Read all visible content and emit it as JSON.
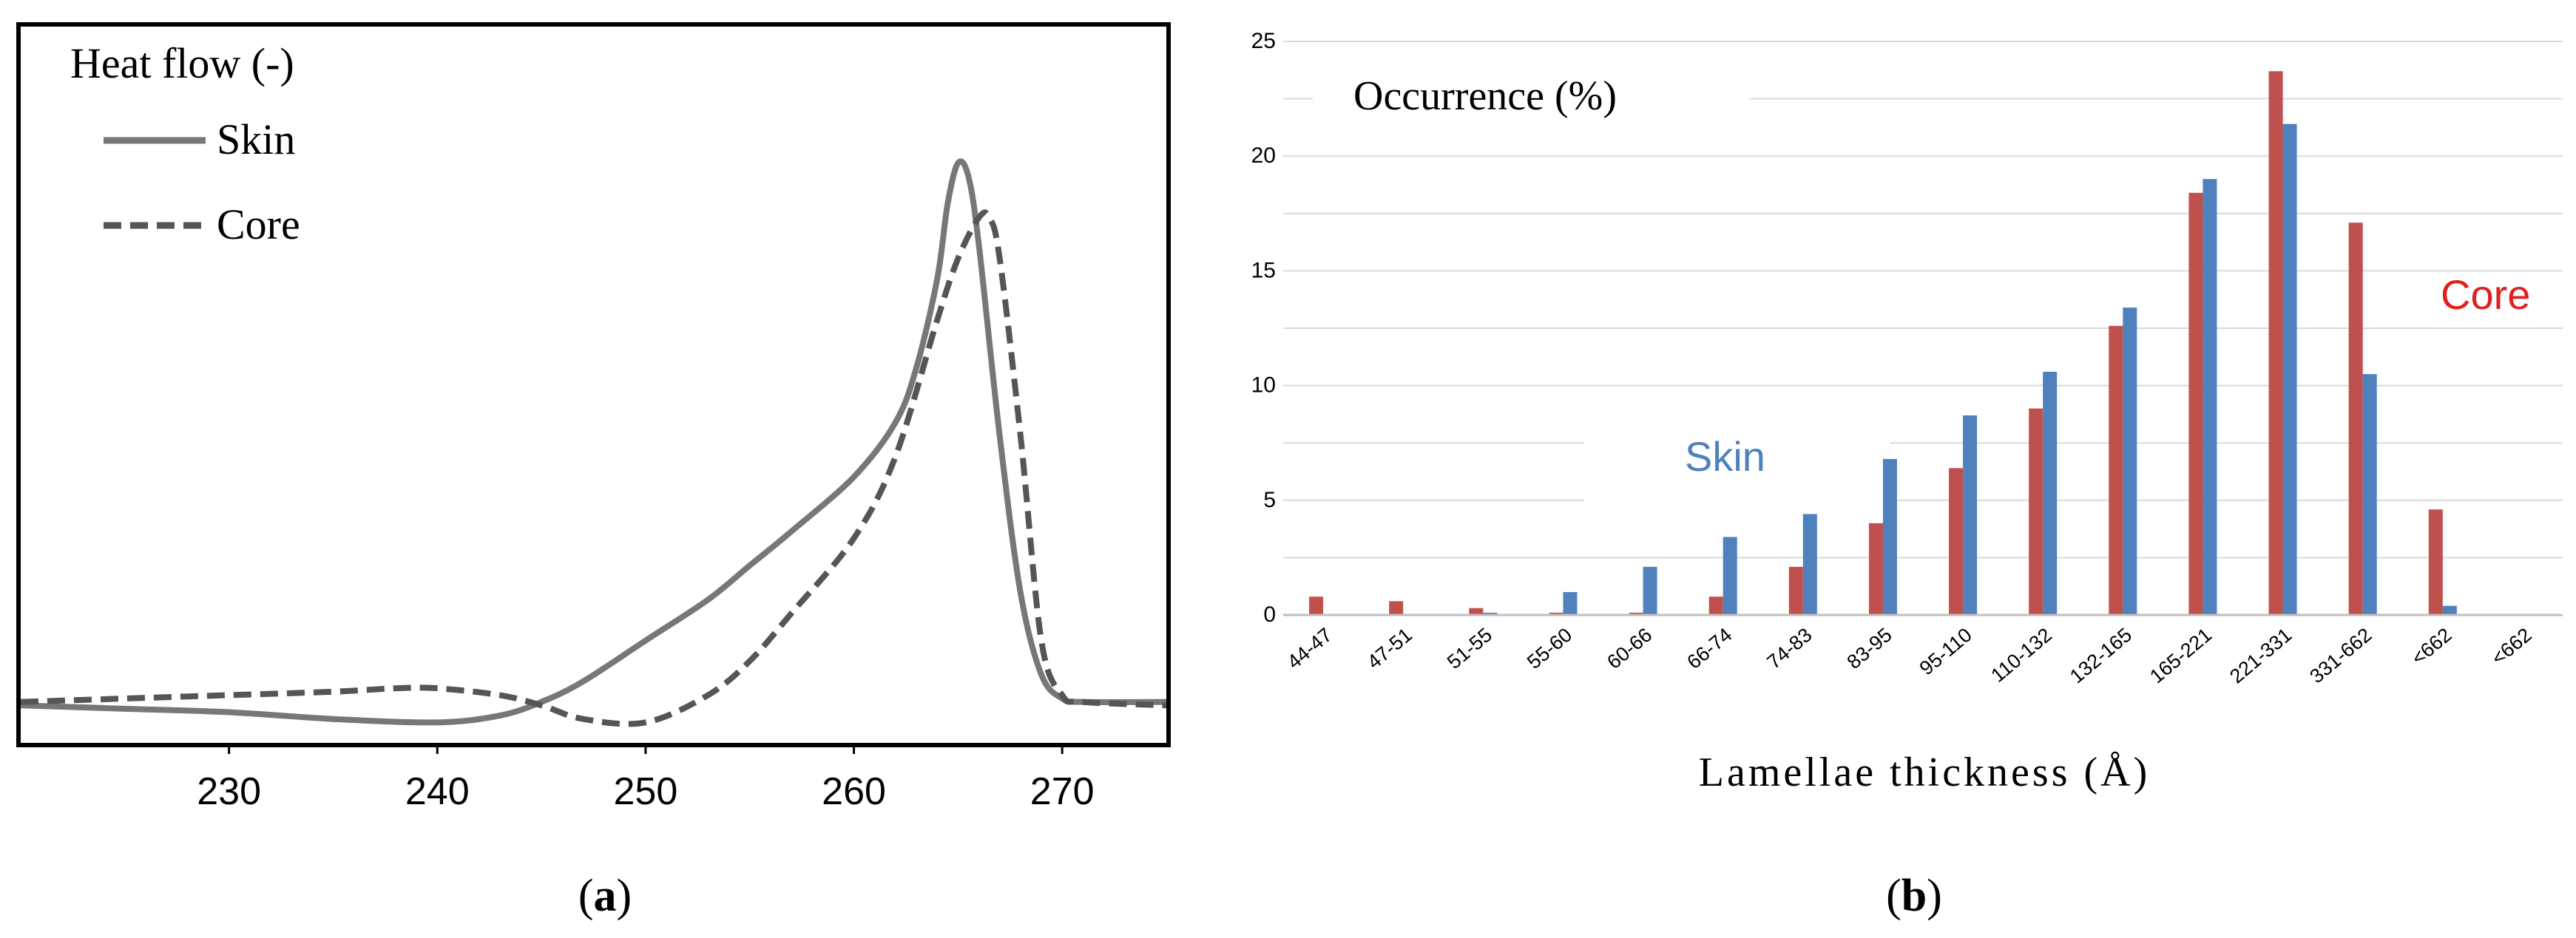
{
  "panel_a": {
    "caption": "(a)",
    "caption_letter": "a",
    "ylabel": "Heat flow (-)",
    "legend": {
      "skin": "Skin",
      "core": "Core"
    },
    "chart_data": {
      "type": "line",
      "xlabel": "",
      "ylabel": "Heat flow (-)",
      "xlim": [
        220,
        275
      ],
      "ylim": [
        -0.05,
        1.0
      ],
      "xticks": [
        230,
        240,
        250,
        260,
        270
      ],
      "series": [
        {
          "name": "Skin",
          "style": "solid",
          "color": "#777777",
          "x": [
            220,
            225,
            230,
            235,
            240,
            243,
            245,
            247,
            250,
            253,
            255,
            257,
            260,
            262,
            263,
            264,
            264.5,
            265,
            265.5,
            266,
            267,
            268,
            269,
            270,
            271,
            275
          ],
          "y": [
            0.005,
            0.0,
            -0.005,
            -0.015,
            -0.02,
            -0.01,
            0.01,
            0.04,
            0.1,
            0.16,
            0.21,
            0.26,
            0.34,
            0.42,
            0.5,
            0.63,
            0.74,
            0.8,
            0.78,
            0.68,
            0.4,
            0.17,
            0.05,
            0.015,
            0.01,
            0.01
          ]
        },
        {
          "name": "Core",
          "style": "dashed",
          "color": "#555555",
          "x": [
            220,
            225,
            230,
            235,
            238,
            240,
            243,
            245,
            247,
            250,
            253,
            255,
            257,
            260,
            262,
            264,
            265,
            266,
            266.5,
            267,
            268,
            269,
            270,
            271,
            275
          ],
          "y": [
            0.01,
            0.015,
            0.02,
            0.025,
            0.03,
            0.03,
            0.02,
            0.005,
            -0.015,
            -0.02,
            0.02,
            0.07,
            0.14,
            0.25,
            0.37,
            0.57,
            0.66,
            0.72,
            0.72,
            0.66,
            0.4,
            0.1,
            0.02,
            0.01,
            0.005
          ]
        }
      ]
    }
  },
  "panel_b": {
    "caption": "(b)",
    "caption_letter": "b",
    "ylabel": "Occurrence (%)",
    "annotation_skin": "Skin",
    "annotation_core": "Core",
    "colors": {
      "core": "#C0504D",
      "skin": "#4F81BD"
    },
    "chart_data": {
      "type": "bar",
      "title": "",
      "xlabel": "Lamellae thickness (Å)",
      "ylabel": "Occurrence (%)",
      "ylim": [
        0,
        25
      ],
      "yticks": [
        0,
        5,
        10,
        15,
        20,
        25
      ],
      "categories": [
        "44-47",
        "47-51",
        "51-55",
        "55-60",
        "60-66",
        "66-74",
        "74-83",
        "83-95",
        "95-110",
        "110-132",
        "132-165",
        "165-221",
        "221-331",
        "331-662",
        "<662",
        "<662"
      ],
      "series": [
        {
          "name": "Core",
          "values": [
            0.8,
            0.6,
            0.3,
            0.1,
            0.1,
            0.8,
            2.1,
            4.0,
            6.4,
            9.0,
            12.6,
            18.4,
            23.7,
            17.1,
            4.6,
            0.0
          ]
        },
        {
          "name": "Skin",
          "values": [
            0.0,
            0.0,
            0.1,
            1.0,
            2.1,
            3.4,
            4.4,
            6.8,
            8.7,
            10.6,
            13.4,
            19.0,
            21.4,
            10.5,
            0.4,
            0.0
          ]
        }
      ]
    }
  }
}
